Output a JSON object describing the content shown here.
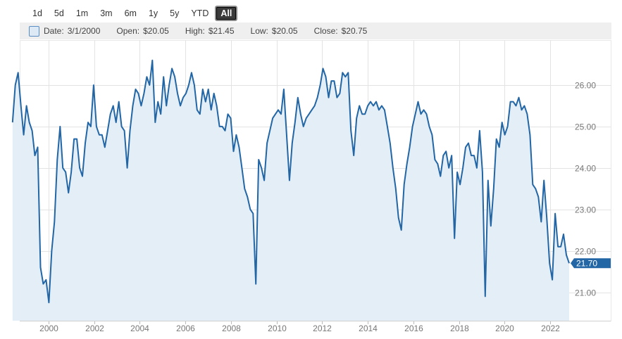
{
  "range_selector": {
    "buttons": [
      "1d",
      "5d",
      "1m",
      "3m",
      "6m",
      "1y",
      "5y",
      "YTD",
      "All"
    ],
    "active": "All"
  },
  "tooltip": {
    "date_label": "Date:",
    "date": "3/1/2000",
    "open_label": "Open:",
    "open": "$20.05",
    "high_label": "High:",
    "high": "$21.45",
    "low_label": "Low:",
    "low": "$20.05",
    "close_label": "Close:",
    "close": "$20.75"
  },
  "chart_data": {
    "type": "area",
    "x_start": "1998-06",
    "x_step": "month",
    "xlim": [
      "1998-06",
      "2022-11"
    ],
    "x_ticks": [
      "2000",
      "2002",
      "2004",
      "2006",
      "2008",
      "2010",
      "2012",
      "2014",
      "2016",
      "2018",
      "2020",
      "2022"
    ],
    "ylim": [
      20.4,
      26.85
    ],
    "y_ticks": [
      "21.00",
      "22.00",
      "23.00",
      "24.00",
      "25.00",
      "26.00"
    ],
    "grid": true,
    "last_value_label": "21.70",
    "colors": {
      "line": "#2266a6",
      "fill": "#e4eef7",
      "label_bg": "#2266a6",
      "grid": "#e3e3e3"
    },
    "values": [
      25.1,
      26.0,
      26.3,
      25.5,
      24.8,
      25.5,
      25.1,
      24.9,
      24.3,
      24.5,
      21.6,
      21.2,
      21.3,
      20.75,
      22.0,
      22.7,
      24.2,
      25.0,
      24.0,
      23.9,
      23.4,
      23.9,
      24.7,
      24.7,
      24.0,
      23.8,
      24.6,
      25.1,
      25.0,
      26.0,
      25.0,
      24.8,
      24.8,
      24.5,
      24.9,
      25.3,
      25.5,
      25.1,
      25.6,
      25.0,
      24.9,
      24.0,
      24.9,
      25.5,
      25.9,
      25.8,
      25.5,
      25.8,
      26.2,
      26.0,
      26.6,
      25.1,
      25.6,
      25.3,
      26.2,
      25.5,
      26.0,
      26.4,
      26.2,
      25.8,
      25.5,
      25.7,
      25.8,
      26.0,
      26.3,
      26.0,
      25.4,
      25.3,
      25.9,
      25.6,
      25.9,
      25.4,
      25.8,
      25.5,
      25.0,
      25.0,
      24.9,
      25.3,
      25.2,
      24.4,
      24.8,
      24.5,
      24.0,
      23.5,
      23.3,
      23.0,
      22.9,
      21.2,
      24.2,
      24.0,
      23.7,
      24.6,
      24.9,
      25.2,
      25.3,
      25.4,
      25.3,
      25.9,
      24.8,
      23.7,
      24.6,
      25.1,
      25.7,
      25.3,
      25.0,
      25.2,
      25.3,
      25.4,
      25.5,
      25.7,
      26.0,
      26.4,
      26.2,
      25.7,
      26.1,
      26.1,
      25.7,
      25.8,
      26.3,
      26.2,
      26.3,
      24.9,
      24.3,
      25.2,
      25.5,
      25.3,
      25.3,
      25.5,
      25.6,
      25.5,
      25.6,
      25.4,
      25.5,
      25.4,
      25.0,
      24.6,
      24.0,
      23.5,
      22.8,
      22.5,
      23.6,
      24.1,
      24.5,
      25.0,
      25.3,
      25.6,
      25.3,
      25.4,
      25.3,
      25.0,
      24.8,
      24.2,
      24.1,
      23.8,
      24.3,
      24.4,
      24.0,
      24.3,
      22.3,
      23.9,
      23.6,
      24.0,
      24.5,
      24.6,
      24.3,
      24.3,
      24.0,
      24.9,
      23.9,
      20.9,
      23.7,
      22.6,
      23.5,
      24.7,
      24.5,
      25.1,
      24.8,
      25.0,
      25.6,
      25.6,
      25.5,
      25.7,
      25.4,
      25.5,
      25.3,
      24.8,
      23.6,
      23.5,
      23.3,
      22.7,
      23.7,
      22.8,
      21.7,
      21.3,
      22.9,
      22.1,
      22.1,
      22.4,
      21.9,
      21.7
    ]
  }
}
